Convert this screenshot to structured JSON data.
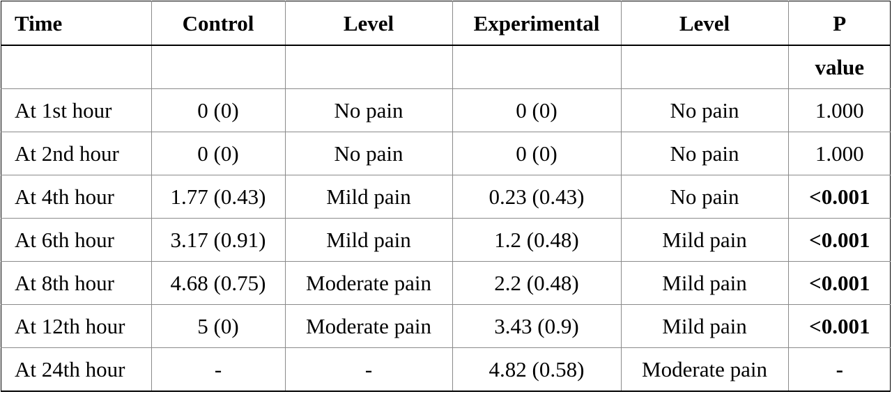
{
  "table": {
    "headers": {
      "time": "Time",
      "control": "Control",
      "level_control": "Level",
      "experimental": "Experimental",
      "level_experimental": "Level",
      "p_line1": "P",
      "p_line2": "value"
    },
    "rows": [
      {
        "time": "At 1st hour",
        "control": "0 (0)",
        "control_level": "No pain",
        "experimental": "0 (0)",
        "experimental_level": "No pain",
        "p": "1.000",
        "p_bold": false
      },
      {
        "time": "At 2nd hour",
        "control": "0 (0)",
        "control_level": "No pain",
        "experimental": "0 (0)",
        "experimental_level": "No pain",
        "p": "1.000",
        "p_bold": false
      },
      {
        "time": "At 4th hour",
        "control": "1.77 (0.43)",
        "control_level": "Mild pain",
        "experimental": "0.23 (0.43)",
        "experimental_level": "No pain",
        "p": "<0.001",
        "p_bold": true
      },
      {
        "time": "At 6th hour",
        "control": "3.17 (0.91)",
        "control_level": "Mild pain",
        "experimental": "1.2 (0.48)",
        "experimental_level": "Mild pain",
        "p": "<0.001",
        "p_bold": true
      },
      {
        "time": "At 8th hour",
        "control": "4.68 (0.75)",
        "control_level": "Moderate pain",
        "experimental": "2.2 (0.48)",
        "experimental_level": "Mild pain",
        "p": "<0.001",
        "p_bold": true
      },
      {
        "time": "At 12th hour",
        "control": "5 (0)",
        "control_level": "Moderate pain",
        "experimental": "3.43 (0.9)",
        "experimental_level": "Mild pain",
        "p": "<0.001",
        "p_bold": true
      },
      {
        "time": "At 24th hour",
        "control": "-",
        "control_level": "-",
        "experimental": "4.82 (0.58)",
        "experimental_level": "Moderate pain",
        "p": "-",
        "p_bold": true
      }
    ]
  }
}
